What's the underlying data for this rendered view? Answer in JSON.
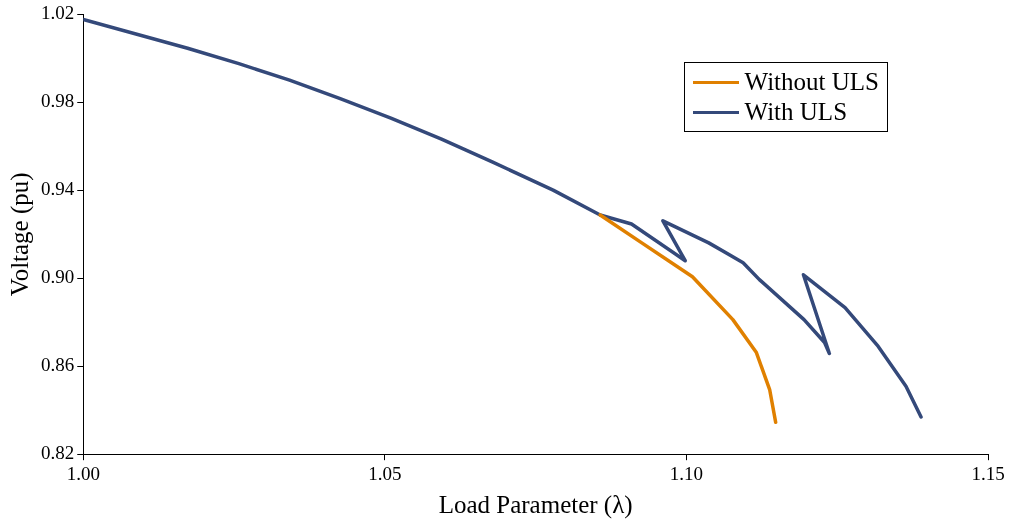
{
  "chart_data": {
    "type": "line",
    "xlabel": "Load Parameter (λ)",
    "ylabel": "Voltage (pu)",
    "xlim": [
      1.0,
      1.15
    ],
    "xticks": [
      {
        "value": 1.0,
        "label": "1.00"
      },
      {
        "value": 1.05,
        "label": "1.05"
      },
      {
        "value": 1.1,
        "label": "1.10"
      },
      {
        "value": 1.15,
        "label": "1.15"
      }
    ],
    "ylim": [
      0.82,
      1.02
    ],
    "yticks": [
      {
        "value": 0.82,
        "label": "0.82"
      },
      {
        "value": 0.86,
        "label": "0.86"
      },
      {
        "value": 0.9,
        "label": "0.90"
      },
      {
        "value": 0.94,
        "label": "0.94"
      },
      {
        "value": 0.98,
        "label": "0.98"
      },
      {
        "value": 1.02,
        "label": "1.02"
      }
    ],
    "grid": false,
    "legend": "top right",
    "marker": "none",
    "line_style": "solid",
    "series": [
      {
        "name": "Without ULS",
        "color": "#e08000",
        "x": [
          1.0857,
          1.0926,
          1.101,
          1.1077,
          1.1116,
          1.1138,
          1.1148
        ],
        "values": [
          0.9288,
          0.9161,
          0.9007,
          0.8812,
          0.8662,
          0.8494,
          0.8345
        ]
      },
      {
        "name": "With ULS",
        "color": "#34497a",
        "x": [
          1.0,
          1.0173,
          1.0258,
          1.0342,
          1.0426,
          1.051,
          1.0594,
          1.0678,
          1.0779,
          1.0857,
          1.0909,
          1.0998,
          1.0961,
          1.1037,
          1.1094,
          1.1121,
          1.1195,
          1.1229,
          1.1237,
          1.1194,
          1.1263,
          1.1318,
          1.1364,
          1.1389
        ],
        "values": [
          1.0177,
          1.0046,
          0.9976,
          0.9901,
          0.9817,
          0.9728,
          0.9633,
          0.9529,
          0.9401,
          0.9288,
          0.9247,
          0.908,
          0.9261,
          0.9161,
          0.9071,
          0.8994,
          0.8812,
          0.8708,
          0.8658,
          0.9016,
          0.8867,
          0.869,
          0.8509,
          0.8369
        ]
      }
    ]
  }
}
